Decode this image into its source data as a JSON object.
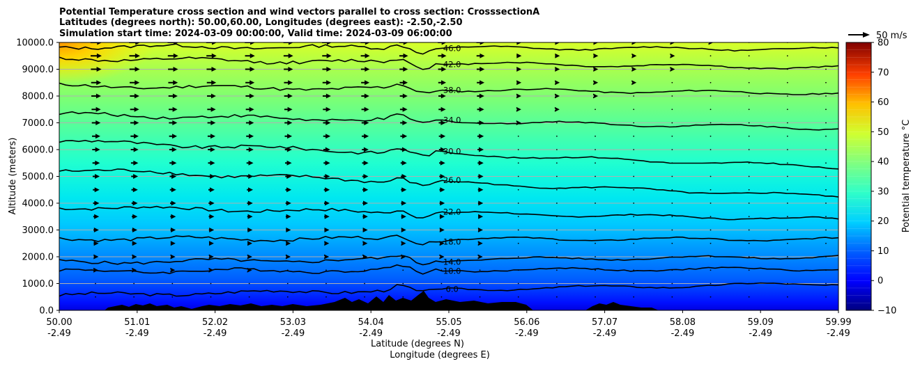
{
  "chart_data": {
    "type": "contour",
    "title_lines": [
      "Potential Temperature cross section and wind vectors parallel to cross section: CrosssectionA",
      "Latitudes (degrees north): 50.00,60.00, Longitudes (degrees east): -2.50,-2.50",
      "Simulation start time: 2024-03-09 00:00:00, Valid time: 2024-03-09 06:00:00"
    ],
    "ylabel": "Altitude (meters)",
    "xlabel_lat": "Latitude (degrees N)",
    "xlabel_lon": "Longitude (degrees E)",
    "ylim": [
      0,
      10000
    ],
    "xlim": [
      50.0,
      59.99
    ],
    "y_ticks": [
      "0.0",
      "1000.0",
      "2000.0",
      "3000.0",
      "4000.0",
      "5000.0",
      "6000.0",
      "7000.0",
      "8000.0",
      "9000.0",
      "10000.0"
    ],
    "x_ticks_lat": [
      "50.00",
      "51.01",
      "52.02",
      "53.03",
      "54.04",
      "55.05",
      "56.06",
      "57.07",
      "58.08",
      "59.09",
      "59.99"
    ],
    "x_ticks_lon": [
      "-2.49",
      "-2.49",
      "-2.49",
      "-2.49",
      "-2.49",
      "-2.49",
      "-2.49",
      "-2.49",
      "-2.49",
      "-2.49",
      "-2.49"
    ],
    "grid": "horizontal",
    "quiver_key": "50 m/s",
    "colorbar": {
      "label": "Potential temperature °C",
      "range": [
        -10,
        80
      ],
      "ticks": [
        "−10",
        "0",
        "10",
        "20",
        "30",
        "40",
        "50",
        "60",
        "70",
        "80"
      ],
      "colormap": "jet"
    },
    "contour_levels": [
      {
        "label": "6.0",
        "left_alt": 560,
        "right_alt": 1000
      },
      {
        "label": "10.0",
        "left_alt": 1460,
        "right_alt": 1550
      },
      {
        "label": "14.0",
        "left_alt": 1800,
        "right_alt": 2000
      },
      {
        "label": "18.0",
        "left_alt": 2680,
        "right_alt": 2650
      },
      {
        "label": "22.0",
        "left_alt": 3860,
        "right_alt": 3400
      },
      {
        "label": "26.0",
        "left_alt": 5260,
        "right_alt": 4250
      },
      {
        "label": "30.0",
        "left_alt": 6320,
        "right_alt": 5350
      },
      {
        "label": "34.0",
        "left_alt": 7320,
        "right_alt": 6800
      },
      {
        "label": "38.0",
        "left_alt": 8380,
        "right_alt": 8100
      },
      {
        "label": "42.0",
        "left_alt": 9400,
        "right_alt": 9050
      },
      {
        "label": "46.0",
        "left_alt": 9850,
        "right_alt": 9750
      }
    ]
  }
}
